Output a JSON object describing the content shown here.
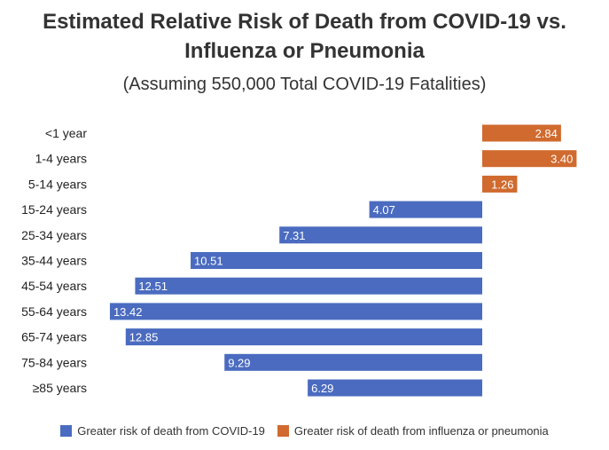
{
  "chart_data": {
    "type": "bar",
    "orientation": "horizontal-diverging",
    "title": "Estimated Relative Risk of Death from COVID-19 vs. Influenza or Pneumonia",
    "title_line1": "Estimated Relative Risk of Death from COVID-19 vs.",
    "title_line2": "Influenza or Pneumonia",
    "subtitle": "(Assuming 550,000 Total COVID-19 Fatalities)",
    "categories": [
      "<1 year",
      "1-4 years",
      "5-14 years",
      "15-24 years",
      "25-34 years",
      "35-44 years",
      "45-54 years",
      "55-64 years",
      "65-74 years",
      "75-84 years",
      "≥85 years"
    ],
    "values": [
      2.84,
      3.4,
      1.26,
      4.07,
      7.31,
      10.51,
      12.51,
      13.42,
      12.85,
      9.29,
      6.29
    ],
    "labels": [
      "2.84",
      "3.40",
      "1.26",
      "4.07",
      "7.31",
      "10.51",
      "12.51",
      "13.42",
      "12.85",
      "9.29",
      "6.29"
    ],
    "direction": [
      "flu",
      "flu",
      "flu",
      "covid",
      "covid",
      "covid",
      "covid",
      "covid",
      "covid",
      "covid",
      "covid"
    ],
    "series": [
      {
        "key": "covid",
        "name": "Greater risk of death from COVID-19",
        "color": "#4a6bbf"
      },
      {
        "key": "flu",
        "name": "Greater risk of death from influenza or pneumonia",
        "color": "#d06a2e"
      }
    ],
    "legend_position": "bottom"
  }
}
